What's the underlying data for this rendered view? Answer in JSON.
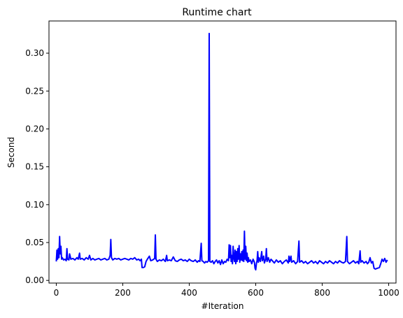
{
  "chart_data": {
    "type": "line",
    "title": "Runtime chart",
    "xlabel": "#Iteration",
    "ylabel": "Second",
    "xlim": [
      -22,
      1022
    ],
    "ylim": [
      -0.0035,
      0.3425
    ],
    "xticks": [
      0,
      200,
      400,
      600,
      800,
      1000
    ],
    "yticks": [
      0.0,
      0.05,
      0.1,
      0.15,
      0.2,
      0.25,
      0.3
    ],
    "ytick_labels": [
      "0.00",
      "0.05",
      "0.10",
      "0.15",
      "0.20",
      "0.25",
      "0.30"
    ],
    "grid": false,
    "series": [
      {
        "color": "#0000ff",
        "points": [
          [
            0,
            0.025
          ],
          [
            2,
            0.04
          ],
          [
            4,
            0.028
          ],
          [
            6,
            0.042
          ],
          [
            8,
            0.03
          ],
          [
            10,
            0.058
          ],
          [
            12,
            0.035
          ],
          [
            14,
            0.045
          ],
          [
            16,
            0.028
          ],
          [
            18,
            0.03
          ],
          [
            22,
            0.027
          ],
          [
            26,
            0.028
          ],
          [
            30,
            0.026
          ],
          [
            32,
            0.042
          ],
          [
            34,
            0.028
          ],
          [
            38,
            0.027
          ],
          [
            40,
            0.035
          ],
          [
            44,
            0.028
          ],
          [
            50,
            0.029
          ],
          [
            56,
            0.027
          ],
          [
            62,
            0.03
          ],
          [
            66,
            0.028
          ],
          [
            70,
            0.036
          ],
          [
            72,
            0.028
          ],
          [
            78,
            0.029
          ],
          [
            84,
            0.027
          ],
          [
            90,
            0.03
          ],
          [
            96,
            0.028
          ],
          [
            100,
            0.033
          ],
          [
            104,
            0.027
          ],
          [
            110,
            0.029
          ],
          [
            116,
            0.027
          ],
          [
            122,
            0.028
          ],
          [
            128,
            0.029
          ],
          [
            134,
            0.027
          ],
          [
            140,
            0.028
          ],
          [
            146,
            0.029
          ],
          [
            152,
            0.027
          ],
          [
            158,
            0.028
          ],
          [
            162,
            0.033
          ],
          [
            164,
            0.054
          ],
          [
            166,
            0.03
          ],
          [
            170,
            0.027
          ],
          [
            176,
            0.029
          ],
          [
            182,
            0.028
          ],
          [
            188,
            0.029
          ],
          [
            194,
            0.027
          ],
          [
            200,
            0.028
          ],
          [
            206,
            0.029
          ],
          [
            212,
            0.028
          ],
          [
            218,
            0.027
          ],
          [
            224,
            0.029
          ],
          [
            230,
            0.028
          ],
          [
            236,
            0.03
          ],
          [
            242,
            0.027
          ],
          [
            248,
            0.028
          ],
          [
            252,
            0.026
          ],
          [
            256,
            0.028
          ],
          [
            258,
            0.017
          ],
          [
            262,
            0.017
          ],
          [
            266,
            0.018
          ],
          [
            270,
            0.025
          ],
          [
            274,
            0.028
          ],
          [
            280,
            0.032
          ],
          [
            284,
            0.026
          ],
          [
            290,
            0.027
          ],
          [
            296,
            0.029
          ],
          [
            298,
            0.06
          ],
          [
            300,
            0.028
          ],
          [
            304,
            0.025
          ],
          [
            310,
            0.027
          ],
          [
            316,
            0.026
          ],
          [
            322,
            0.028
          ],
          [
            328,
            0.025
          ],
          [
            332,
            0.033
          ],
          [
            334,
            0.026
          ],
          [
            340,
            0.027
          ],
          [
            346,
            0.026
          ],
          [
            352,
            0.031
          ],
          [
            358,
            0.026
          ],
          [
            364,
            0.025
          ],
          [
            370,
            0.027
          ],
          [
            376,
            0.028
          ],
          [
            382,
            0.026
          ],
          [
            388,
            0.027
          ],
          [
            394,
            0.025
          ],
          [
            400,
            0.028
          ],
          [
            406,
            0.026
          ],
          [
            412,
            0.025
          ],
          [
            418,
            0.027
          ],
          [
            424,
            0.024
          ],
          [
            428,
            0.026
          ],
          [
            432,
            0.025
          ],
          [
            436,
            0.049
          ],
          [
            438,
            0.026
          ],
          [
            442,
            0.025
          ],
          [
            446,
            0.023
          ],
          [
            450,
            0.025
          ],
          [
            454,
            0.024
          ],
          [
            458,
            0.026
          ],
          [
            460,
            0.326
          ],
          [
            462,
            0.025
          ],
          [
            466,
            0.024
          ],
          [
            470,
            0.026
          ],
          [
            474,
            0.022
          ],
          [
            478,
            0.025
          ],
          [
            482,
            0.027
          ],
          [
            486,
            0.023
          ],
          [
            490,
            0.026
          ],
          [
            494,
            0.021
          ],
          [
            498,
            0.027
          ],
          [
            502,
            0.022
          ],
          [
            506,
            0.025
          ],
          [
            510,
            0.024
          ],
          [
            514,
            0.028
          ],
          [
            518,
            0.026
          ],
          [
            520,
            0.047
          ],
          [
            522,
            0.03
          ],
          [
            524,
            0.046
          ],
          [
            526,
            0.025
          ],
          [
            528,
            0.033
          ],
          [
            530,
            0.022
          ],
          [
            532,
            0.045
          ],
          [
            534,
            0.03
          ],
          [
            536,
            0.025
          ],
          [
            538,
            0.04
          ],
          [
            540,
            0.022
          ],
          [
            542,
            0.038
          ],
          [
            544,
            0.025
          ],
          [
            546,
            0.042
          ],
          [
            548,
            0.028
          ],
          [
            550,
            0.046
          ],
          [
            552,
            0.024
          ],
          [
            554,
            0.035
          ],
          [
            556,
            0.027
          ],
          [
            558,
            0.038
          ],
          [
            560,
            0.026
          ],
          [
            562,
            0.04
          ],
          [
            564,
            0.025
          ],
          [
            566,
            0.065
          ],
          [
            568,
            0.028
          ],
          [
            570,
            0.045
          ],
          [
            572,
            0.026
          ],
          [
            574,
            0.036
          ],
          [
            576,
            0.024
          ],
          [
            578,
            0.03
          ],
          [
            580,
            0.025
          ],
          [
            584,
            0.027
          ],
          [
            588,
            0.022
          ],
          [
            592,
            0.028
          ],
          [
            596,
            0.024
          ],
          [
            598,
            0.016
          ],
          [
            600,
            0.014
          ],
          [
            602,
            0.022
          ],
          [
            604,
            0.026
          ],
          [
            606,
            0.038
          ],
          [
            608,
            0.024
          ],
          [
            610,
            0.03
          ],
          [
            614,
            0.025
          ],
          [
            618,
            0.038
          ],
          [
            620,
            0.026
          ],
          [
            624,
            0.032
          ],
          [
            626,
            0.023
          ],
          [
            630,
            0.028
          ],
          [
            632,
            0.042
          ],
          [
            634,
            0.025
          ],
          [
            638,
            0.03
          ],
          [
            642,
            0.024
          ],
          [
            646,
            0.028
          ],
          [
            650,
            0.026
          ],
          [
            656,
            0.023
          ],
          [
            662,
            0.027
          ],
          [
            668,
            0.024
          ],
          [
            674,
            0.026
          ],
          [
            680,
            0.022
          ],
          [
            686,
            0.025
          ],
          [
            692,
            0.027
          ],
          [
            698,
            0.023
          ],
          [
            700,
            0.032
          ],
          [
            702,
            0.025
          ],
          [
            706,
            0.032
          ],
          [
            708,
            0.024
          ],
          [
            714,
            0.026
          ],
          [
            720,
            0.022
          ],
          [
            726,
            0.025
          ],
          [
            730,
            0.052
          ],
          [
            732,
            0.024
          ],
          [
            738,
            0.026
          ],
          [
            744,
            0.023
          ],
          [
            750,
            0.025
          ],
          [
            756,
            0.022
          ],
          [
            762,
            0.024
          ],
          [
            768,
            0.026
          ],
          [
            774,
            0.023
          ],
          [
            780,
            0.025
          ],
          [
            786,
            0.022
          ],
          [
            792,
            0.026
          ],
          [
            798,
            0.024
          ],
          [
            804,
            0.022
          ],
          [
            810,
            0.025
          ],
          [
            816,
            0.023
          ],
          [
            822,
            0.026
          ],
          [
            828,
            0.024
          ],
          [
            834,
            0.022
          ],
          [
            840,
            0.025
          ],
          [
            846,
            0.023
          ],
          [
            852,
            0.026
          ],
          [
            858,
            0.024
          ],
          [
            864,
            0.023
          ],
          [
            870,
            0.025
          ],
          [
            874,
            0.058
          ],
          [
            876,
            0.025
          ],
          [
            882,
            0.022
          ],
          [
            888,
            0.024
          ],
          [
            894,
            0.026
          ],
          [
            900,
            0.023
          ],
          [
            906,
            0.025
          ],
          [
            910,
            0.022
          ],
          [
            914,
            0.039
          ],
          [
            916,
            0.024
          ],
          [
            920,
            0.026
          ],
          [
            926,
            0.023
          ],
          [
            932,
            0.025
          ],
          [
            936,
            0.022
          ],
          [
            940,
            0.024
          ],
          [
            944,
            0.03
          ],
          [
            948,
            0.023
          ],
          [
            952,
            0.025
          ],
          [
            956,
            0.016
          ],
          [
            960,
            0.015
          ],
          [
            966,
            0.016
          ],
          [
            972,
            0.017
          ],
          [
            976,
            0.022
          ],
          [
            980,
            0.028
          ],
          [
            984,
            0.025
          ],
          [
            988,
            0.029
          ],
          [
            992,
            0.024
          ],
          [
            996,
            0.027
          ]
        ]
      }
    ]
  }
}
